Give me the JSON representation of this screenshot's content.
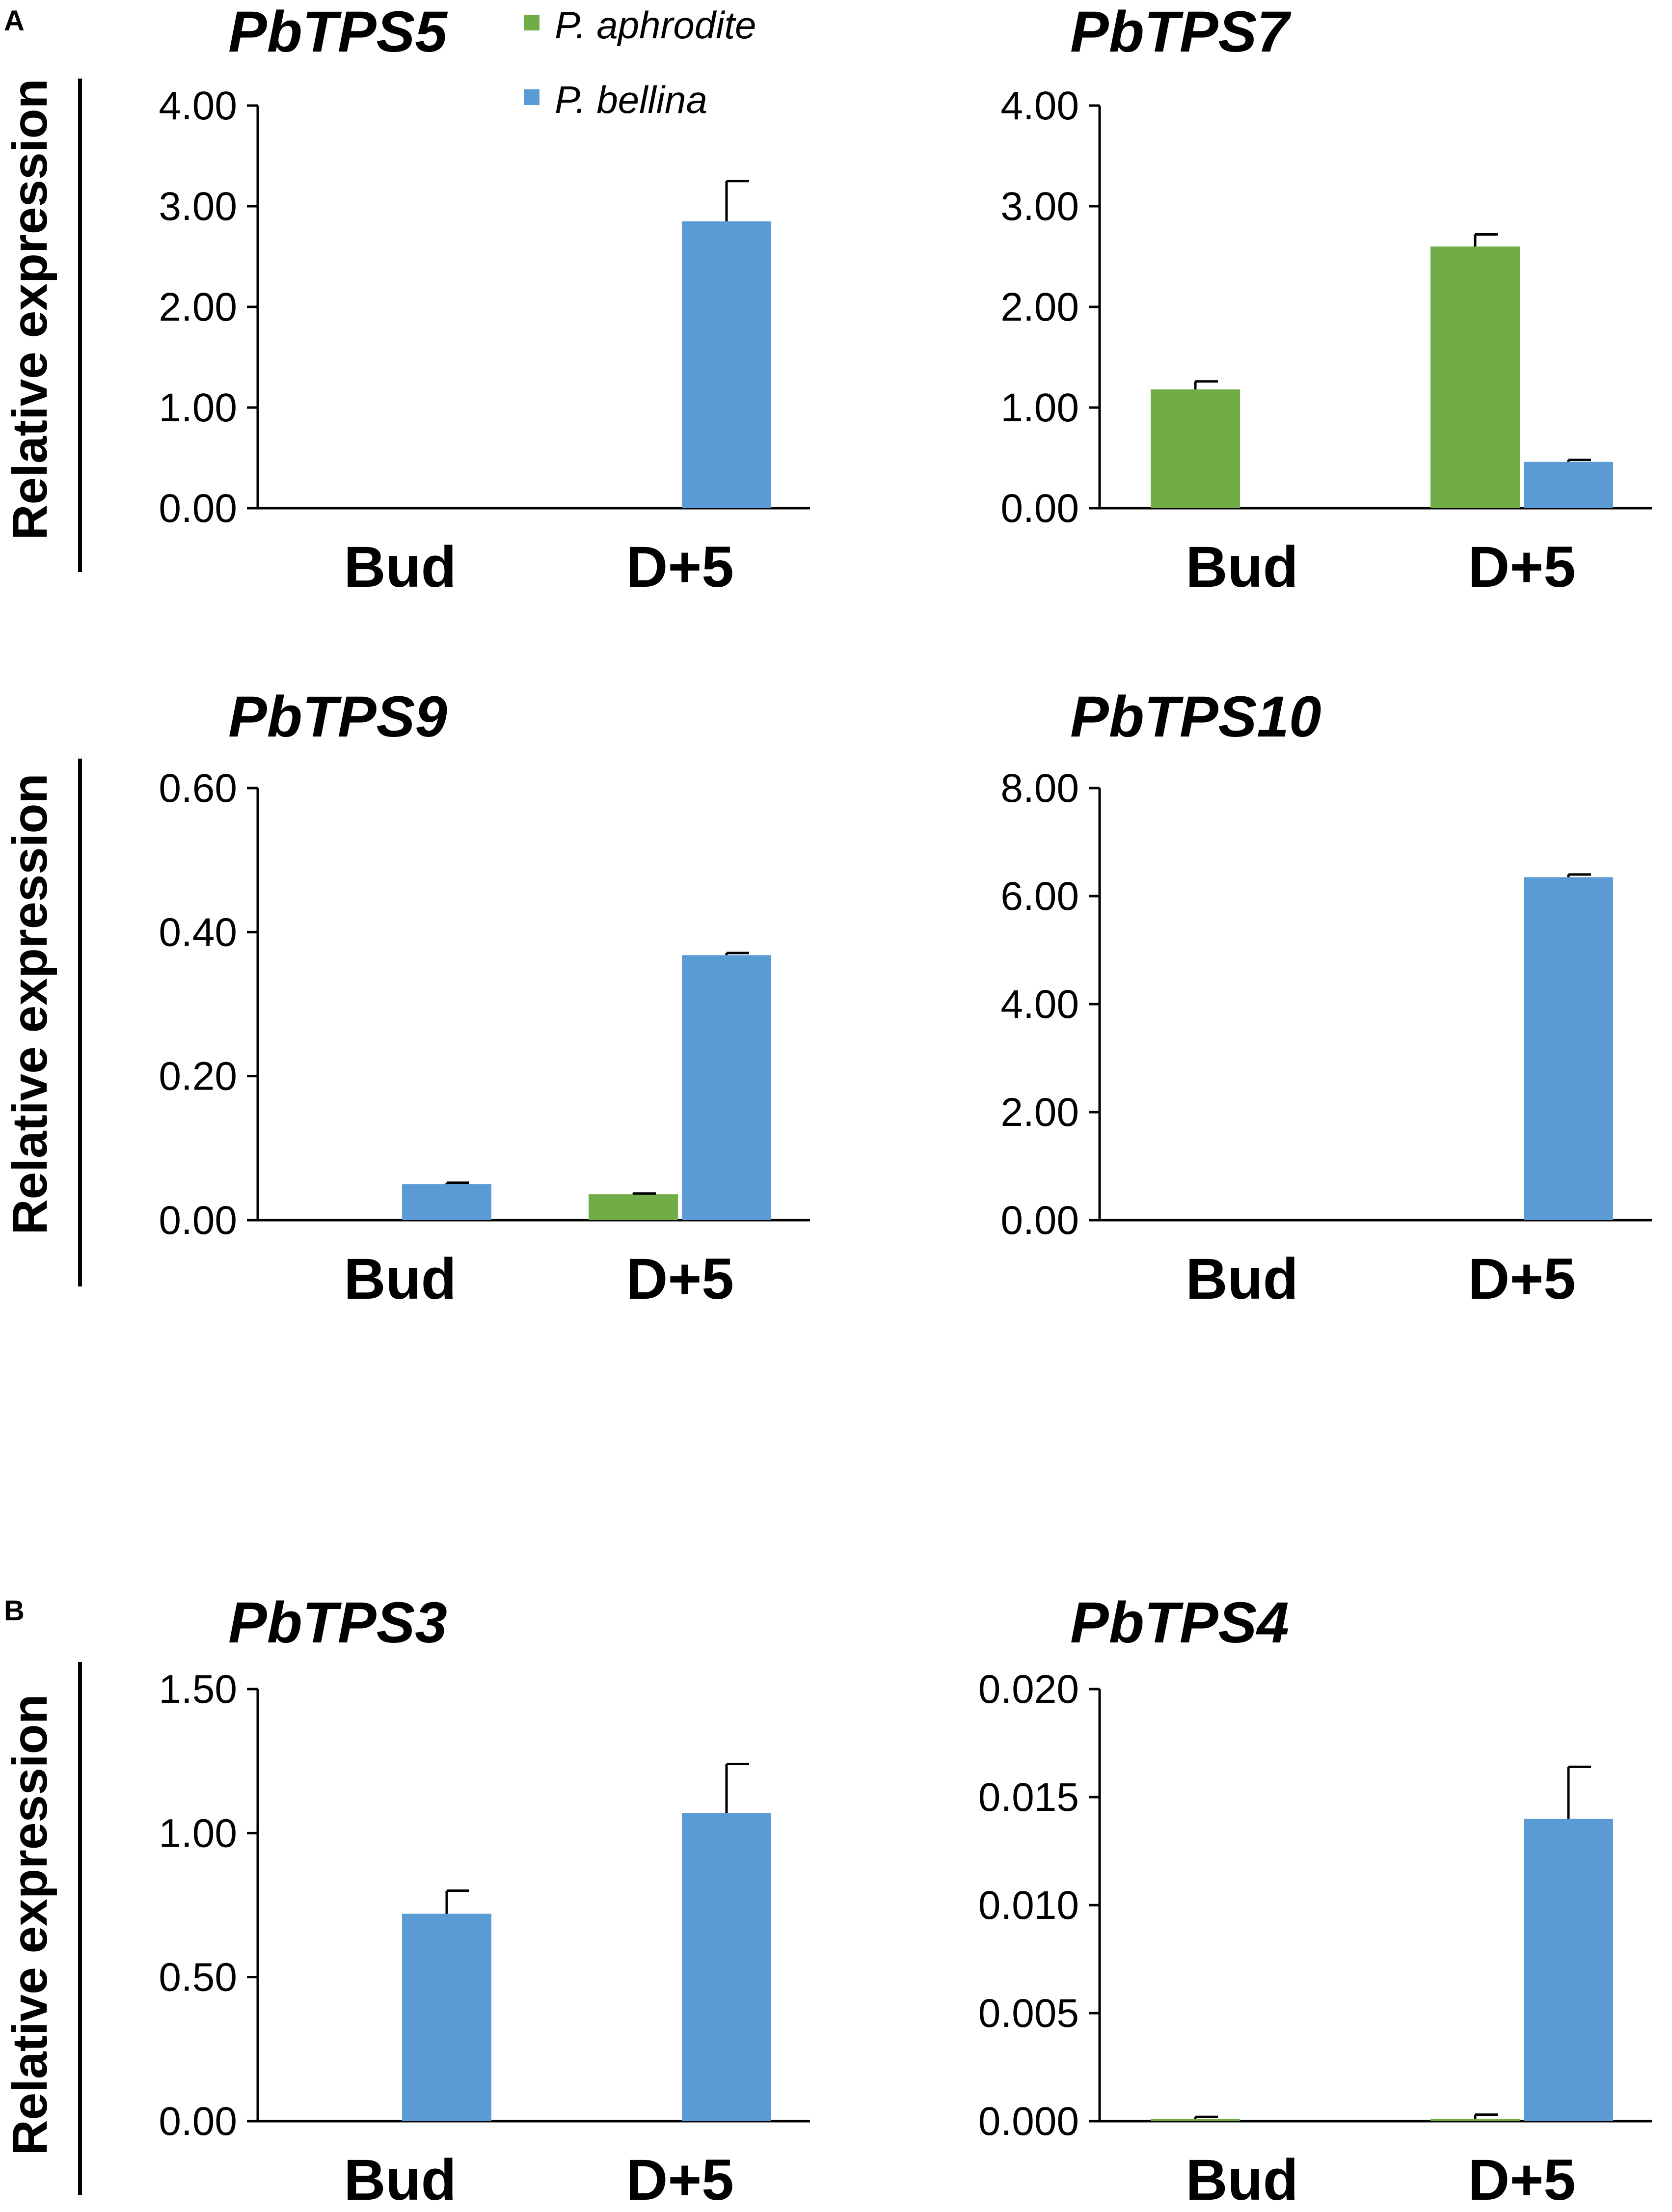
{
  "panels": [
    {
      "label": "A"
    },
    {
      "label": "B"
    }
  ],
  "y_axis_label": "Relative expression",
  "legend": [
    {
      "name": "P. aphrodite",
      "color": "#70ad47"
    },
    {
      "name": "P. bellina",
      "color": "#5b9bd5"
    }
  ],
  "chart_data": [
    {
      "type": "bar",
      "title": "PbTPS5",
      "panel": "A",
      "categories": [
        "Bud",
        "D+5"
      ],
      "ylabel": "Relative expression",
      "ylim": [
        0,
        4
      ],
      "yticks": [
        "0.00",
        "1.00",
        "2.00",
        "3.00",
        "4.00"
      ],
      "series": [
        {
          "name": "P. aphrodite",
          "values": [
            0,
            0
          ],
          "errors": [
            0,
            0
          ]
        },
        {
          "name": "P. bellina",
          "values": [
            0,
            2.85
          ],
          "errors": [
            0,
            0.4
          ]
        }
      ]
    },
    {
      "type": "bar",
      "title": "PbTPS7",
      "panel": "A",
      "categories": [
        "Bud",
        "D+5"
      ],
      "ylabel": "",
      "ylim": [
        0,
        4
      ],
      "yticks": [
        "0.00",
        "1.00",
        "2.00",
        "3.00",
        "4.00"
      ],
      "series": [
        {
          "name": "P. aphrodite",
          "values": [
            1.18,
            2.6
          ],
          "errors": [
            0.08,
            0.12
          ]
        },
        {
          "name": "P. bellina",
          "values": [
            0,
            0.46
          ],
          "errors": [
            0,
            0.02
          ]
        }
      ]
    },
    {
      "type": "bar",
      "title": "PbTPS9",
      "panel": "A",
      "categories": [
        "Bud",
        "D+5"
      ],
      "ylabel": "Relative expression",
      "ylim": [
        0,
        0.6
      ],
      "yticks": [
        "0.00",
        "0.20",
        "0.40",
        "0.60"
      ],
      "series": [
        {
          "name": "P. aphrodite",
          "values": [
            0,
            0.036
          ],
          "errors": [
            0,
            0.001
          ]
        },
        {
          "name": "P. bellina",
          "values": [
            0.05,
            0.368
          ],
          "errors": [
            0.002,
            0.003
          ]
        }
      ]
    },
    {
      "type": "bar",
      "title": "PbTPS10",
      "panel": "A",
      "categories": [
        "Bud",
        "D+5"
      ],
      "ylabel": "",
      "ylim": [
        0,
        8
      ],
      "yticks": [
        "0.00",
        "2.00",
        "4.00",
        "6.00",
        "8.00"
      ],
      "series": [
        {
          "name": "P. aphrodite",
          "values": [
            0,
            0
          ],
          "errors": [
            0,
            0
          ]
        },
        {
          "name": "P. bellina",
          "values": [
            0,
            6.35
          ],
          "errors": [
            0,
            0.05
          ]
        }
      ]
    },
    {
      "type": "bar",
      "title": "PbTPS3",
      "panel": "B",
      "categories": [
        "Bud",
        "D+5"
      ],
      "ylabel": "Relative expression",
      "ylim": [
        0,
        1.5
      ],
      "yticks": [
        "0.00",
        "0.50",
        "1.00",
        "1.50"
      ],
      "series": [
        {
          "name": "P. aphrodite",
          "values": [
            0,
            0
          ],
          "errors": [
            0,
            0
          ]
        },
        {
          "name": "P. bellina",
          "values": [
            0.72,
            1.07
          ],
          "errors": [
            0.08,
            0.17
          ]
        }
      ]
    },
    {
      "type": "bar",
      "title": "PbTPS4",
      "panel": "B",
      "categories": [
        "Bud",
        "D+5"
      ],
      "ylabel": "",
      "ylim": [
        0,
        0.02
      ],
      "yticks": [
        "0.000",
        "0.005",
        "0.010",
        "0.015",
        "0.020"
      ],
      "series": [
        {
          "name": "P. aphrodite",
          "values": [
            0.0001,
            0.0001
          ],
          "errors": [
            0.0001,
            0.0002
          ]
        },
        {
          "name": "P. bellina",
          "values": [
            0,
            0.014
          ],
          "errors": [
            0,
            0.0024
          ]
        }
      ]
    }
  ]
}
